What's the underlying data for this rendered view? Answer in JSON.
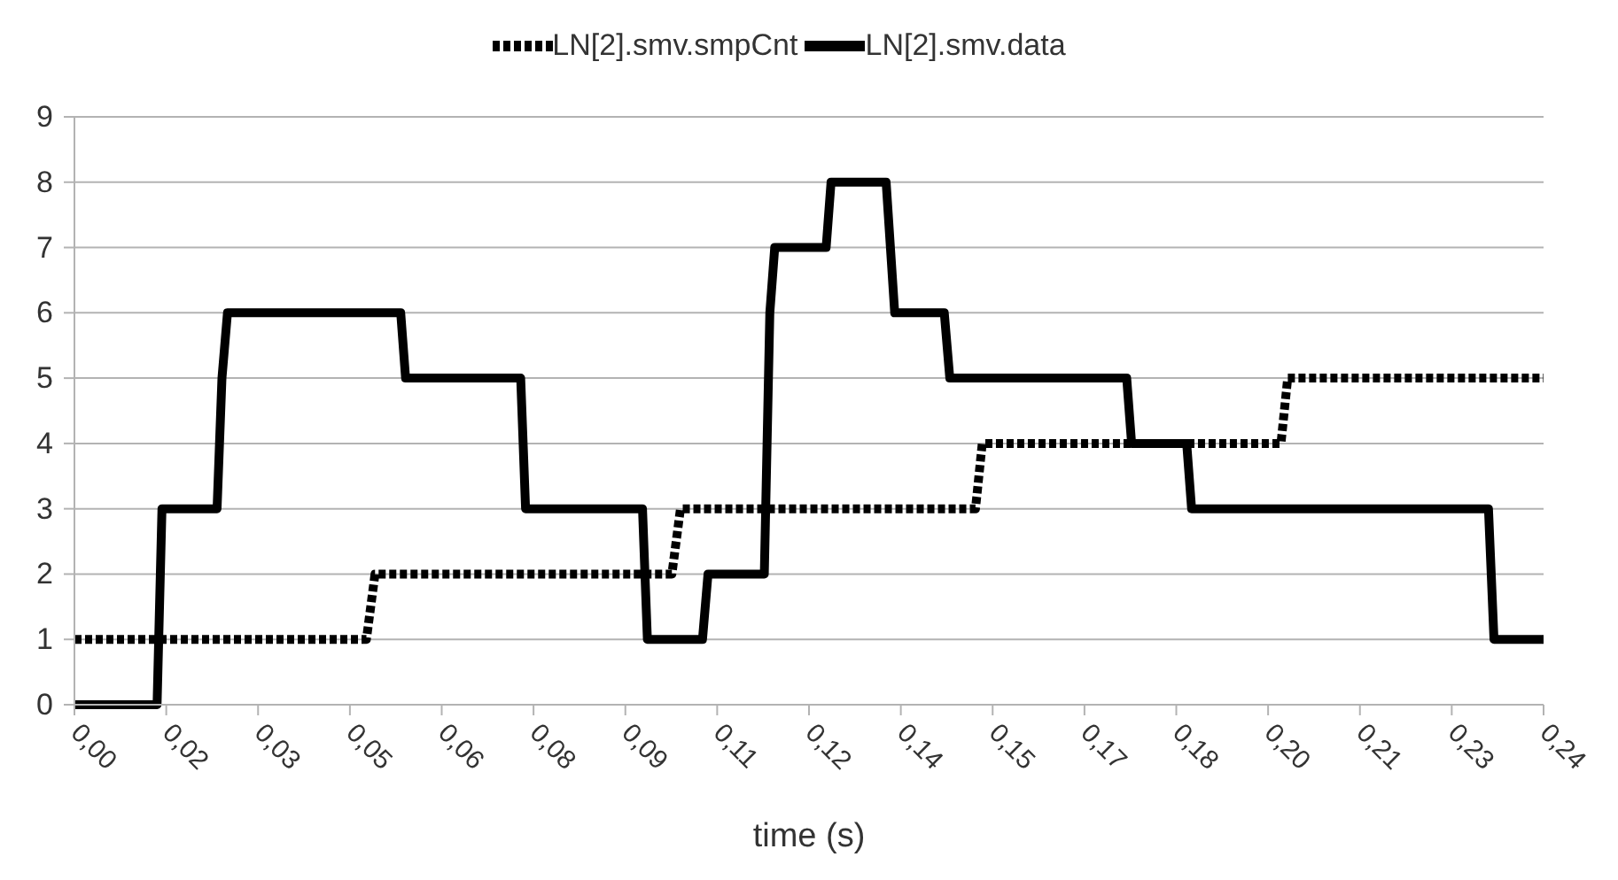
{
  "chart_data": {
    "type": "line",
    "xlabel": "time (s)",
    "legend": "top",
    "grid": "y",
    "xlim": [
      0,
      0.24
    ],
    "ylim": [
      0,
      9
    ],
    "yticks": [
      0,
      1,
      2,
      3,
      4,
      5,
      6,
      7,
      8,
      9
    ],
    "xticks": [
      {
        "value": 0,
        "label": "0,00"
      },
      {
        "value": 0.015,
        "label": "0,02"
      },
      {
        "value": 0.03,
        "label": "0,03"
      },
      {
        "value": 0.045,
        "label": "0,05"
      },
      {
        "value": 0.06,
        "label": "0,06"
      },
      {
        "value": 0.075,
        "label": "0,08"
      },
      {
        "value": 0.09,
        "label": "0,09"
      },
      {
        "value": 0.105,
        "label": "0,11"
      },
      {
        "value": 0.12,
        "label": "0,12"
      },
      {
        "value": 0.135,
        "label": "0,14"
      },
      {
        "value": 0.15,
        "label": "0,15"
      },
      {
        "value": 0.165,
        "label": "0,17"
      },
      {
        "value": 0.18,
        "label": "0,18"
      },
      {
        "value": 0.195,
        "label": "0,20"
      },
      {
        "value": 0.21,
        "label": "0,21"
      },
      {
        "value": 0.225,
        "label": "0,23"
      },
      {
        "value": 0.24,
        "label": "0,24"
      }
    ],
    "series": [
      {
        "name": "LN[2].smv.smpCnt",
        "color": "#000000",
        "line_style": "dotted",
        "x": [
          0,
          0.0477,
          0.0491,
          0.0976,
          0.099,
          0.1472,
          0.1483,
          0.1971,
          0.1982,
          0.24
        ],
        "values": [
          1,
          1,
          2,
          2,
          3,
          3,
          4,
          4,
          5,
          5
        ]
      },
      {
        "name": "LN[2].smv.data",
        "color": "#000000",
        "line_style": "solid",
        "x": [
          0,
          0.0135,
          0.0143,
          0.0233,
          0.0241,
          0.025,
          0.0533,
          0.0541,
          0.0729,
          0.0737,
          0.0928,
          0.0936,
          0.1026,
          0.1035,
          0.1127,
          0.1136,
          0.1144,
          0.1228,
          0.1236,
          0.1326,
          0.134,
          0.1421,
          0.143,
          0.1719,
          0.1727,
          0.1817,
          0.1825,
          0.231,
          0.2319,
          0.24
        ],
        "values": [
          0,
          0,
          3,
          3,
          5,
          6,
          6,
          5,
          5,
          3,
          3,
          1,
          1,
          2,
          2,
          6,
          7,
          7,
          8,
          8,
          6,
          6,
          5,
          5,
          4,
          4,
          3,
          3,
          1,
          1
        ]
      }
    ]
  }
}
